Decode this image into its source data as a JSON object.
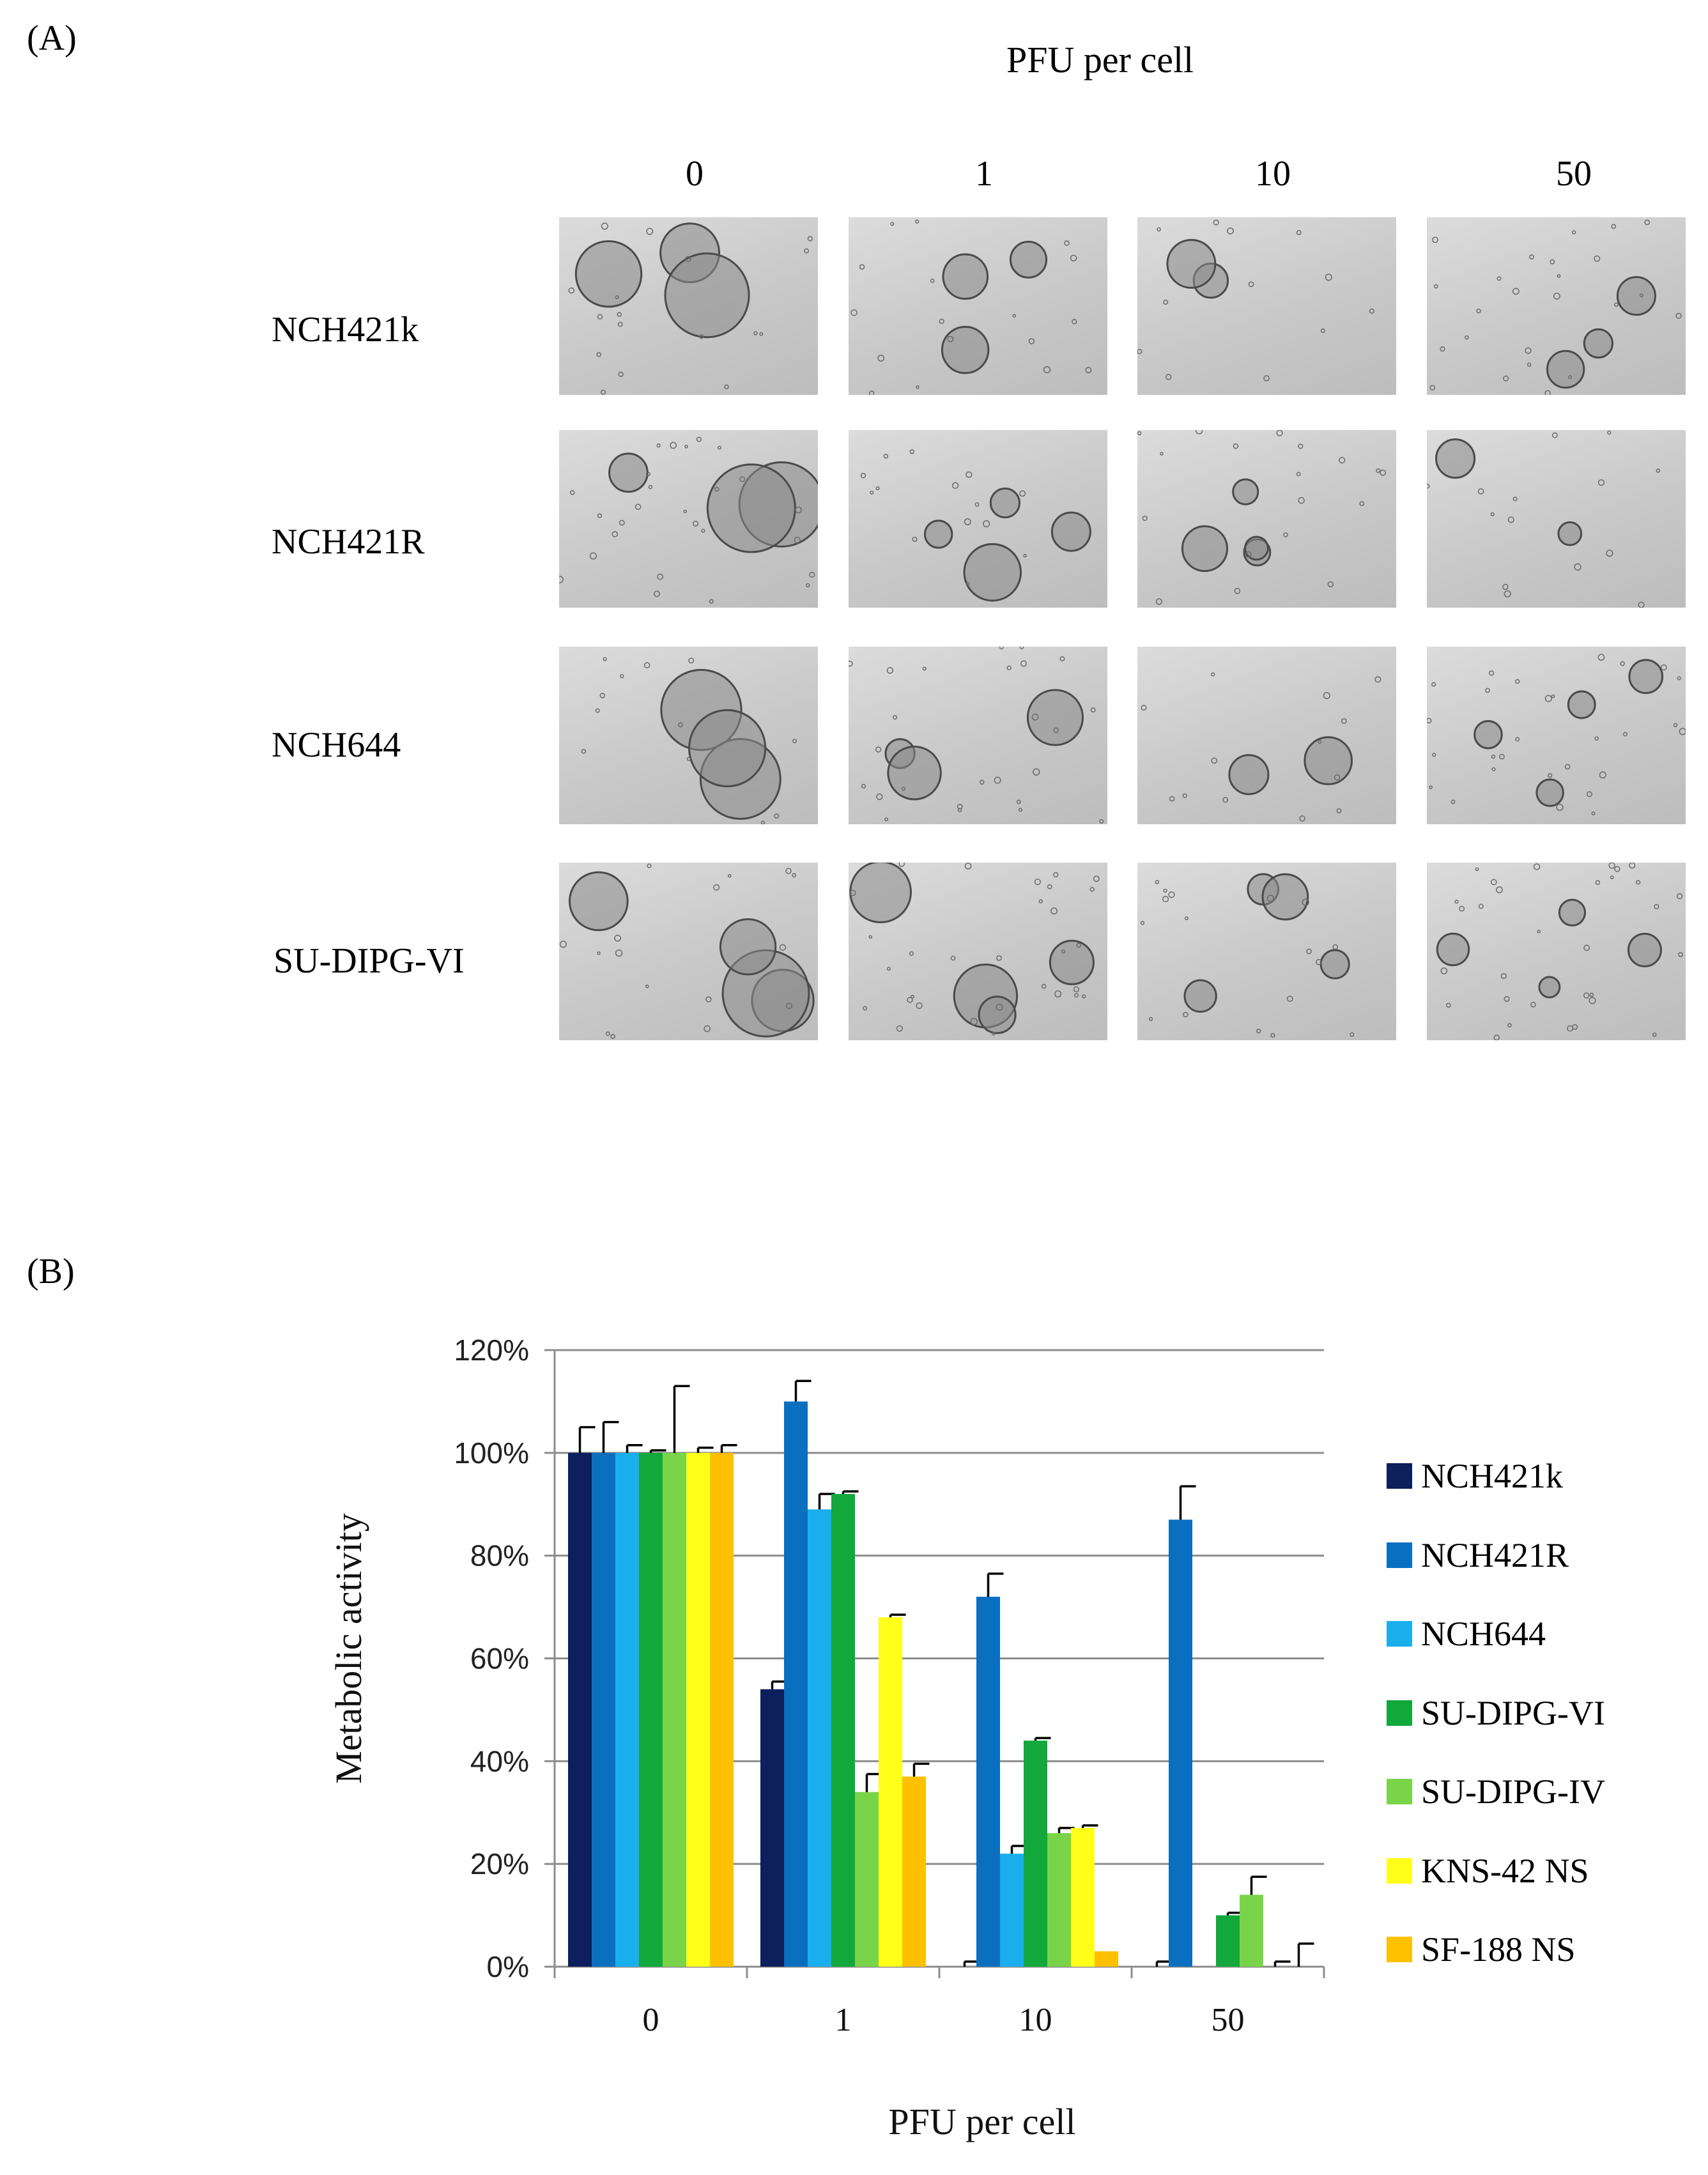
{
  "panel_a": {
    "label": "(A)",
    "title": "PFU per cell",
    "doses": [
      "0",
      "1",
      "10",
      "50"
    ],
    "rows": [
      "NCH421k",
      "NCH421R",
      "NCH644",
      "SU-DIPG-VI"
    ]
  },
  "panel_b": {
    "label": "(B)"
  },
  "chart_data": {
    "type": "bar",
    "title": "",
    "xlabel": "PFU per cell",
    "ylabel": "Metabolic activity",
    "categories": [
      "0",
      "1",
      "10",
      "50"
    ],
    "ylim": [
      0,
      1.2
    ],
    "yticks": [
      "0%",
      "20%",
      "40%",
      "60%",
      "80%",
      "100%",
      "120%"
    ],
    "grid": true,
    "legend_position": "right",
    "series": [
      {
        "name": "NCH421k",
        "color": "#0d1f5c",
        "values": [
          1.0,
          0.54,
          0.0,
          0.0
        ],
        "errors": [
          0.05,
          0.015,
          0.01,
          0.01
        ]
      },
      {
        "name": "NCH421R",
        "color": "#0b6fc0",
        "values": [
          1.0,
          1.1,
          0.72,
          0.87
        ],
        "errors": [
          0.06,
          0.04,
          0.045,
          0.065
        ]
      },
      {
        "name": "NCH644",
        "color": "#1aaeec",
        "values": [
          1.0,
          0.89,
          0.22,
          0.0
        ],
        "errors": [
          0.015,
          0.03,
          0.015,
          0.0
        ]
      },
      {
        "name": "SU-DIPG-VI",
        "color": "#12a83c",
        "values": [
          1.0,
          0.92,
          0.44,
          0.1
        ],
        "errors": [
          0.005,
          0.005,
          0.005,
          0.005
        ]
      },
      {
        "name": "SU-DIPG-IV",
        "color": "#7ad44a",
        "values": [
          1.0,
          0.34,
          0.26,
          0.14
        ],
        "errors": [
          0.13,
          0.035,
          0.01,
          0.035
        ]
      },
      {
        "name": "KNS-42 NS",
        "color": "#ffff1a",
        "values": [
          1.0,
          0.68,
          0.27,
          0.0
        ],
        "errors": [
          0.01,
          0.005,
          0.005,
          0.01
        ]
      },
      {
        "name": "SF-188 NS",
        "color": "#ffc000",
        "values": [
          1.0,
          0.37,
          0.03,
          0.0
        ],
        "errors": [
          0.015,
          0.025,
          0.0,
          0.045
        ]
      }
    ]
  }
}
